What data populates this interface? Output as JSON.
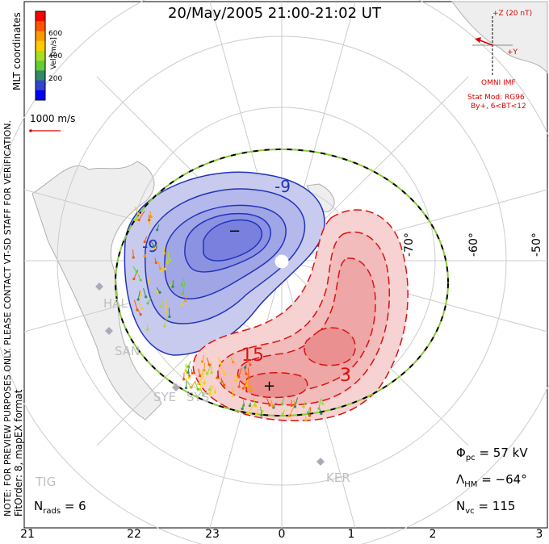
{
  "title": "20/May/2005 21:00-21:02 UT",
  "coordinates_label": "MLT coordinates",
  "colorbar": {
    "label": "Vel [m/s]",
    "ticks": [
      "600",
      "400",
      "200"
    ],
    "colors": [
      "#0000ff",
      "#3344cc",
      "#338866",
      "#66cc33",
      "#aadd22",
      "#ffcc00",
      "#ff9900",
      "#ff5500",
      "#ff0000"
    ]
  },
  "scale_vector_label": "1000 m/s",
  "imf": {
    "z_label": "+Z (20 nT)",
    "y_label": "+Y",
    "source": "OMNI IMF",
    "model_line1": "Stat Mod: RG96",
    "model_line2": "By+, 6<BT<12"
  },
  "preview_note": "NOTE: FOR PREVIEW PURPOSES ONLY. PLEASE CONTACT VT-SD STAFF FOR VERIFICATION.",
  "fit_order": "FitOrder: 8, mapEX format",
  "stations": [
    "HAL",
    "SAN",
    "SYE",
    "SYS",
    "TIG",
    "KER"
  ],
  "latitude_labels": [
    "-70°",
    "-60°",
    "-50°"
  ],
  "contour_labels": [
    "-9",
    "-9",
    "15",
    "3"
  ],
  "min_marker": "−",
  "max_marker": "+",
  "stats": {
    "phi_pc": "= 57 kV",
    "lambda_hm": "= −64°",
    "n_vc": "= 115",
    "n_rads": "= 6"
  },
  "mlt_ticks": [
    "21",
    "22",
    "23",
    "0",
    "1",
    "2",
    "3"
  ],
  "accent_colors": {
    "negative": "#2233bb",
    "positive": "#dd1111",
    "boundary_green": "#88cc33"
  }
}
